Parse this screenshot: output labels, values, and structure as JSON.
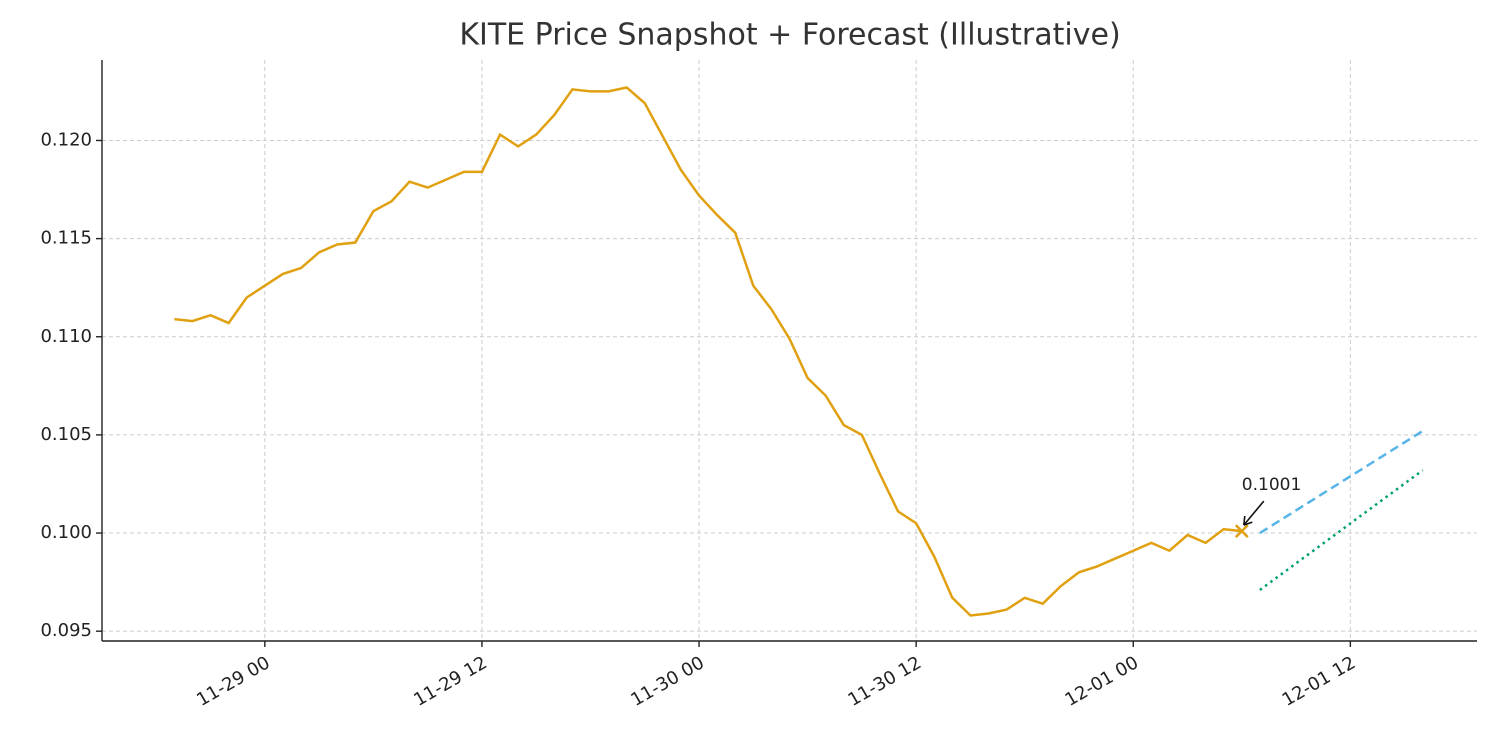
{
  "chart_data": {
    "type": "line",
    "title": "KITE Price Snapshot + Forecast (Illustrative)",
    "grid": true,
    "xlim": [
      "11-28 15",
      "12-01 19"
    ],
    "xticks": [
      "11-29 00",
      "11-29 12",
      "11-30 00",
      "11-30 12",
      "12-01 00",
      "12-01 12"
    ],
    "ylim": [
      0.0945,
      0.1241
    ],
    "yticks": [
      0.095,
      {
        "value": 0.1,
        "label": "0.100"
      },
      0.105,
      {
        "value": 0.11,
        "label": "0.110"
      },
      0.115,
      {
        "value": 0.12,
        "label": "0.120"
      }
    ],
    "series": [
      {
        "color": "#e0a010",
        "style": "solid",
        "x": [
          "11-28 19",
          "11-28 20",
          "11-28 21",
          "11-28 22",
          "11-28 23",
          "11-29 00",
          "11-29 01",
          "11-29 02",
          "11-29 03",
          "11-29 04",
          "11-29 05",
          "11-29 06",
          "11-29 07",
          "11-29 08",
          "11-29 09",
          "11-29 10",
          "11-29 11",
          "11-29 12",
          "11-29 13",
          "11-29 14",
          "11-29 15",
          "11-29 16",
          "11-29 17",
          "11-29 18",
          "11-29 19",
          "11-29 20",
          "11-29 21",
          "11-29 22",
          "11-29 23",
          "11-30 00",
          "11-30 01",
          "11-30 02",
          "11-30 03",
          "11-30 04",
          "11-30 05",
          "11-30 06",
          "11-30 07",
          "11-30 08",
          "11-30 09",
          "11-30 10",
          "11-30 11",
          "11-30 12",
          "11-30 13",
          "11-30 14",
          "11-30 15",
          "11-30 16",
          "11-30 17",
          "11-30 18",
          "11-30 19",
          "11-30 20",
          "11-30 21",
          "11-30 22",
          "11-30 23",
          "12-01 00",
          "12-01 01",
          "12-01 02",
          "12-01 03",
          "12-01 04",
          "12-01 05",
          "12-01 06"
        ],
        "values": [
          0.1109,
          0.1108,
          0.1111,
          0.1107,
          0.112,
          0.1126,
          0.1132,
          0.1135,
          0.1143,
          0.1147,
          0.1148,
          0.1164,
          0.1169,
          0.1179,
          0.1176,
          0.118,
          0.1184,
          0.1184,
          0.1203,
          0.1197,
          0.1203,
          0.1213,
          0.1226,
          0.1225,
          0.1225,
          0.1227,
          0.1219,
          0.1202,
          0.1185,
          0.1172,
          0.1162,
          0.1153,
          0.1126,
          0.1114,
          0.1099,
          0.1079,
          0.107,
          0.1055,
          0.105,
          0.103,
          0.1011,
          0.1005,
          0.0988,
          0.0967,
          0.0958,
          0.0959,
          0.0961,
          0.0967,
          0.0964,
          0.0973,
          0.098,
          0.0983,
          0.0987,
          0.0991,
          0.0995,
          0.0991,
          0.0999,
          0.0995,
          0.1002,
          0.1001
        ]
      },
      {
        "color": "#56b4e9",
        "style": "dashed",
        "x": [
          "12-01 07",
          "12-01 16"
        ],
        "values": [
          0.1,
          0.1052
        ]
      },
      {
        "color": "#009e73",
        "style": "dotted",
        "x": [
          "12-01 07",
          "12-01 16"
        ],
        "values": [
          0.0971,
          0.1032
        ]
      }
    ],
    "marker": {
      "x": "12-01 06",
      "y": 0.1001,
      "color": "#e0a010"
    },
    "annotation": {
      "text": "0.1001",
      "x": "12-01 06",
      "y": 0.1001
    }
  }
}
